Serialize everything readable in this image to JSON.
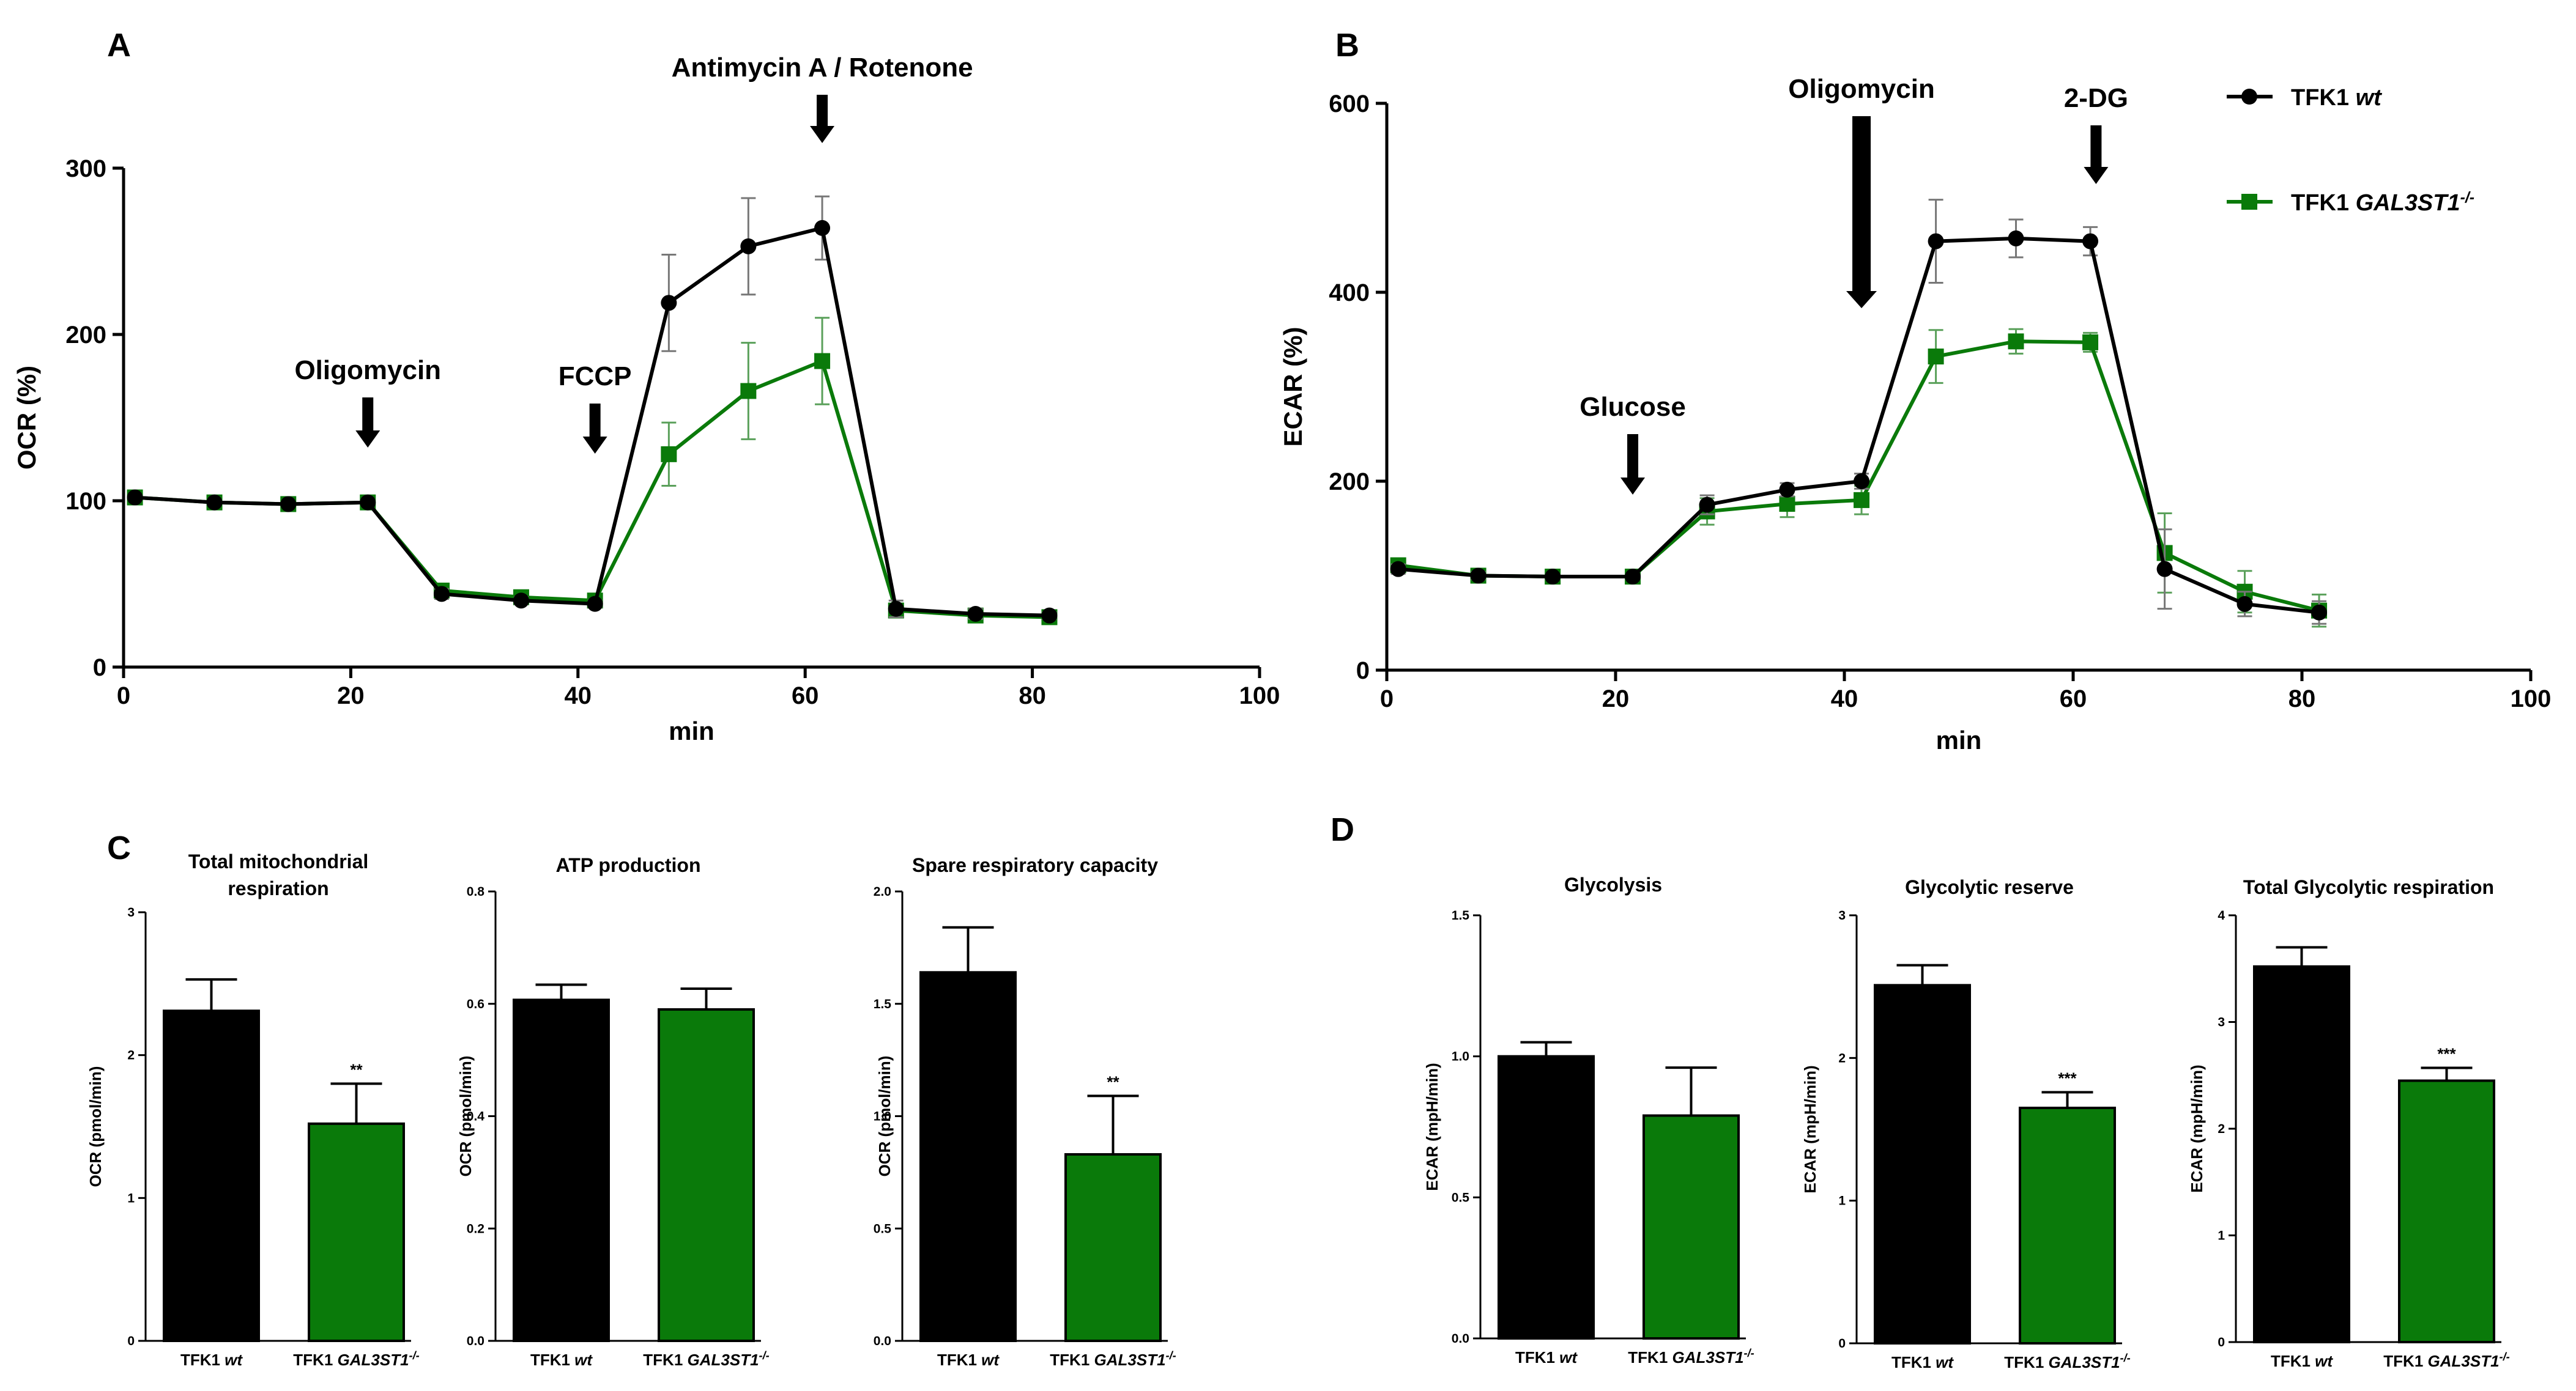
{
  "panels": {
    "A": "A",
    "B": "B",
    "C": "C",
    "D": "D"
  },
  "colors": {
    "wt": "#000000",
    "ko": "#0a7a0a",
    "err_ko": "#5aa05a",
    "err_wt": "#777777"
  },
  "chart_data": [
    {
      "id": "A",
      "type": "line",
      "ylabel": "OCR (%)",
      "xlabel": "min",
      "xlim": [
        0,
        100
      ],
      "ylim": [
        0,
        300
      ],
      "xticks": [
        0,
        20,
        40,
        60,
        80,
        100
      ],
      "yticks": [
        0,
        100,
        200,
        300
      ],
      "x": [
        1,
        8,
        14.5,
        21.5,
        28,
        35,
        41.5,
        48,
        55,
        61.5,
        68,
        75,
        81.5
      ],
      "series": [
        {
          "name": "TFK1 wt",
          "color": "#000000",
          "marker": "circle",
          "values": [
            102,
            99,
            98,
            99,
            44,
            40,
            38,
            219,
            253,
            264,
            35,
            32,
            31
          ],
          "errors": [
            0,
            0,
            0,
            0,
            3,
            2,
            2,
            29,
            29,
            19,
            5,
            3,
            2
          ]
        },
        {
          "name": "TFK1 GAL3ST1-/-",
          "color": "#0a7a0a",
          "marker": "square",
          "values": [
            102,
            99,
            98,
            99,
            46,
            42,
            40,
            128,
            166,
            184,
            34,
            31,
            30
          ],
          "errors": [
            0,
            0,
            0,
            0,
            3,
            2,
            2,
            19,
            29,
            26,
            4,
            3,
            2
          ]
        }
      ],
      "annotations": [
        {
          "label": "Oligomycin",
          "x": 21.5
        },
        {
          "label": "FCCP",
          "x": 41.5
        },
        {
          "label": "Antimycin A / Rotenone",
          "x": 61.5
        }
      ]
    },
    {
      "id": "B",
      "type": "line",
      "ylabel": "ECAR (%)",
      "xlabel": "min",
      "xlim": [
        0,
        100
      ],
      "ylim": [
        0,
        600
      ],
      "xticks": [
        0,
        20,
        40,
        60,
        80,
        100
      ],
      "yticks": [
        0,
        200,
        400,
        600
      ],
      "x": [
        1,
        8,
        14.5,
        21.5,
        28,
        35,
        41.5,
        48,
        55,
        61.5,
        68,
        75,
        81.5
      ],
      "series": [
        {
          "name": "TFK1 wt",
          "color": "#000000",
          "marker": "circle",
          "values": [
            107,
            100,
            99,
            99,
            175,
            191,
            200,
            454,
            457,
            454,
            107,
            70,
            61
          ],
          "errors": [
            5,
            4,
            3,
            3,
            10,
            7,
            8,
            44,
            20,
            15,
            42,
            13,
            12
          ]
        },
        {
          "name": "TFK1 GAL3ST1-/-",
          "color": "#0a7a0a",
          "marker": "square",
          "values": [
            111,
            100,
            99,
            99,
            168,
            176,
            180,
            332,
            348,
            347,
            124,
            83,
            63
          ],
          "errors": [
            5,
            4,
            3,
            3,
            14,
            14,
            15,
            28,
            13,
            10,
            42,
            22,
            17
          ]
        }
      ],
      "annotations": [
        {
          "label": "Glucose",
          "x": 21.5
        },
        {
          "label": "Oligomycin",
          "x": 41.5
        },
        {
          "label": "2-DG",
          "x": 62.0
        }
      ],
      "legend": {
        "position": "top-right",
        "entries": [
          {
            "prefix": "TFK1 ",
            "suffix": "wt",
            "sup": "",
            "marker": "circle",
            "color": "#000000"
          },
          {
            "prefix": "TFK1 ",
            "suffix": "GAL3ST1",
            "sup": "-/-",
            "marker": "square",
            "color": "#0a7a0a"
          }
        ]
      }
    },
    {
      "id": "C1",
      "type": "bar",
      "title": [
        "Total mitochondrial",
        "respiration"
      ],
      "ylabel": "OCR (pmol/min)",
      "ylim": [
        0,
        3
      ],
      "yticks": [
        0,
        1,
        2,
        3
      ],
      "ytick_labels": [
        "0",
        "1",
        "2",
        "3"
      ],
      "categories": [
        "TFK1 wt",
        "TFK1 GAL3ST1-/-"
      ],
      "values": [
        2.31,
        1.52
      ],
      "errors": [
        0.22,
        0.28
      ],
      "significance": [
        "",
        "**"
      ]
    },
    {
      "id": "C2",
      "type": "bar",
      "title": [
        "ATP production"
      ],
      "ylabel": "OCR (pmol/min)",
      "ylim": [
        0,
        0.8
      ],
      "yticks": [
        0,
        0.2,
        0.4,
        0.6,
        0.8
      ],
      "ytick_labels": [
        "0.0",
        "0.2",
        "0.4",
        "0.6",
        "0.8"
      ],
      "categories": [
        "TFK1 wt",
        "TFK1 GAL3ST1-/-"
      ],
      "values": [
        0.607,
        0.59
      ],
      "errors": [
        0.027,
        0.037
      ],
      "significance": [
        "",
        ""
      ]
    },
    {
      "id": "C3",
      "type": "bar",
      "title": [
        "Spare respiratory capacity"
      ],
      "ylabel": "OCR (pmol/min)",
      "ylim": [
        0,
        2.0
      ],
      "yticks": [
        0,
        0.5,
        1.0,
        1.5,
        2.0
      ],
      "ytick_labels": [
        "0.0",
        "0.5",
        "1.0",
        "1.5",
        "2.0"
      ],
      "categories": [
        "TFK1 wt",
        "TFK1 GAL3ST1-/-"
      ],
      "values": [
        1.64,
        0.83
      ],
      "errors": [
        0.2,
        0.26
      ],
      "significance": [
        "",
        "**"
      ]
    },
    {
      "id": "D1",
      "type": "bar",
      "title": [
        "Glycolysis"
      ],
      "ylabel": "ECAR (mpH/min)",
      "ylim": [
        0,
        1.5
      ],
      "yticks": [
        0,
        0.5,
        1.0,
        1.5
      ],
      "ytick_labels": [
        "0.0",
        "0.5",
        "1.0",
        "1.5"
      ],
      "categories": [
        "TFK1 wt",
        "TFK1 GAL3ST1-/-"
      ],
      "values": [
        1.0,
        0.79
      ],
      "errors": [
        0.05,
        0.17
      ],
      "significance": [
        "",
        ""
      ]
    },
    {
      "id": "D2",
      "type": "bar",
      "title": [
        "Glycolytic reserve"
      ],
      "ylabel": "ECAR (mpH/min)",
      "ylim": [
        0,
        3
      ],
      "yticks": [
        0,
        1,
        2,
        3
      ],
      "ytick_labels": [
        "0",
        "1",
        "2",
        "3"
      ],
      "categories": [
        "TFK1 wt",
        "TFK1 GAL3ST1-/-"
      ],
      "values": [
        2.51,
        1.65
      ],
      "errors": [
        0.14,
        0.11
      ],
      "significance": [
        "",
        "***"
      ]
    },
    {
      "id": "D3",
      "type": "bar",
      "title": [
        "Total Glycolytic respiration"
      ],
      "ylabel": "ECAR (mpH/min)",
      "ylim": [
        0,
        4
      ],
      "yticks": [
        0,
        1,
        2,
        3,
        4
      ],
      "ytick_labels": [
        "0",
        "1",
        "2",
        "3",
        "4"
      ],
      "categories": [
        "TFK1 wt",
        "TFK1 GAL3ST1-/-"
      ],
      "values": [
        3.52,
        2.45
      ],
      "errors": [
        0.18,
        0.12
      ],
      "significance": [
        "",
        "***"
      ]
    }
  ]
}
